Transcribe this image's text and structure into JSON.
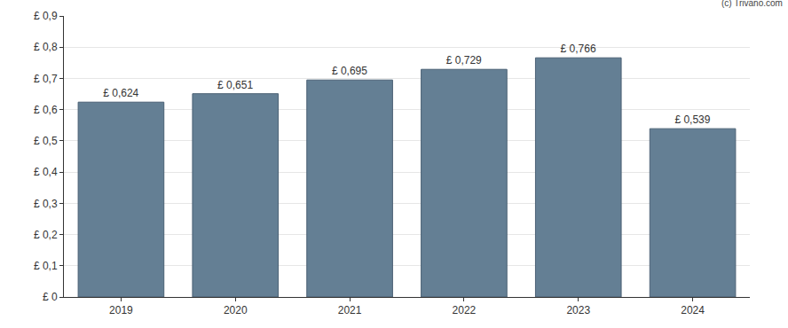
{
  "chart_data": {
    "type": "bar",
    "annotations": [
      "(c) Trivano.com"
    ],
    "categories": [
      "2019",
      "2020",
      "2021",
      "2022",
      "2023",
      "2024"
    ],
    "values": [
      0.624,
      0.651,
      0.695,
      0.729,
      0.766,
      0.539
    ],
    "value_labels": [
      "£ 0,624",
      "£ 0,651",
      "£ 0,695",
      "£ 0,729",
      "£ 0,766",
      "£ 0,539"
    ],
    "data_labels": true,
    "color": "#647f94",
    "ylim": [
      0,
      0.9
    ],
    "yticks": [
      {
        "value": 0,
        "label": "£ 0"
      },
      {
        "value": 0.1,
        "label": "£ 0,1"
      },
      {
        "value": 0.2,
        "label": "£ 0,2"
      },
      {
        "value": 0.3,
        "label": "£ 0,3"
      },
      {
        "value": 0.4,
        "label": "£ 0,4"
      },
      {
        "value": 0.5,
        "label": "£ 0,5"
      },
      {
        "value": 0.6,
        "label": "£ 0,6"
      },
      {
        "value": 0.7,
        "label": "£ 0,7"
      },
      {
        "value": 0.8,
        "label": "£ 0,8"
      },
      {
        "value": 0.9,
        "label": "£ 0,9"
      }
    ],
    "grid": true
  }
}
